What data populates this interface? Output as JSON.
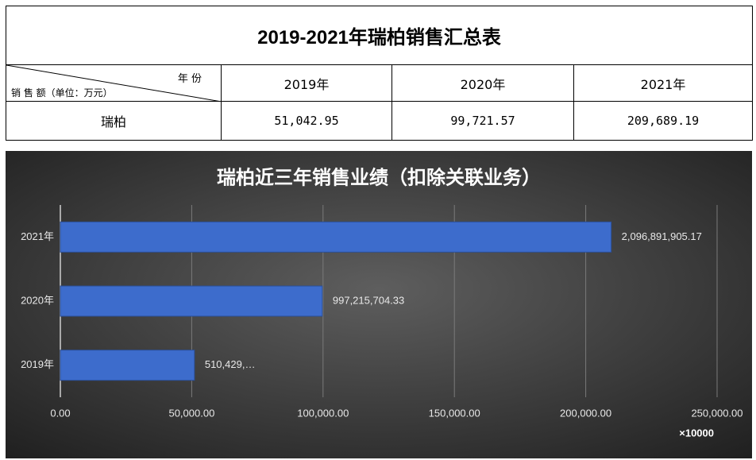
{
  "table": {
    "title": "2019-2021年瑞柏销售汇总表",
    "corner_top": "年 份",
    "corner_bottom": "销 售 额（单位：万元）",
    "columns": [
      "2019年",
      "2020年",
      "2021年"
    ],
    "rows": [
      [
        "瑞柏",
        "51,042.95",
        "99,721.57",
        "209,689.19"
      ]
    ]
  },
  "chart_data": {
    "type": "bar",
    "orientation": "horizontal",
    "title": "瑞柏近三年销售业绩（扣除关联业务）",
    "categories": [
      "2021年",
      "2020年",
      "2019年"
    ],
    "values": [
      209689.190517,
      99721.570433,
      51042.95
    ],
    "value_labels": [
      "2,096,891,905.17",
      "997,215,704.33",
      "510,429,…"
    ],
    "color": "#3d6ccc",
    "xlim": [
      0,
      250000
    ],
    "xticks": [
      {
        "value": 0,
        "label": "0.00"
      },
      {
        "value": 50000,
        "label": "50,000.00"
      },
      {
        "value": 100000,
        "label": "100,000.00"
      },
      {
        "value": 150000,
        "label": "150,000.00"
      },
      {
        "value": 200000,
        "label": "200,000.00"
      },
      {
        "value": 250000,
        "label": "250,000.00"
      }
    ],
    "unit_label": "×10000",
    "grid": true
  }
}
